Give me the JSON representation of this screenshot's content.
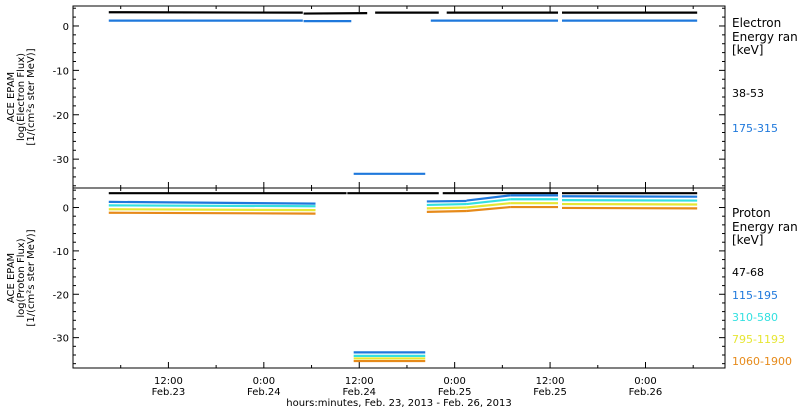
{
  "xlabel": "hours:minutes, Feb. 23, 2013 - Feb. 26, 2013",
  "xticks": [
    {
      "time": "12:00",
      "date": "Feb.23",
      "hour": 12
    },
    {
      "time": "0:00",
      "date": "Feb.24",
      "hour": 24
    },
    {
      "time": "12:00",
      "date": "Feb.24",
      "hour": 36
    },
    {
      "time": "0:00",
      "date": "Feb.25",
      "hour": 48
    },
    {
      "time": "12:00",
      "date": "Feb.25",
      "hour": 60
    },
    {
      "time": "0:00",
      "date": "Feb.26",
      "hour": 72
    }
  ],
  "chart_data": [
    {
      "type": "line",
      "ylabel_line1": "ACE EPAM",
      "ylabel_line2": "log(Electron Flux)",
      "ylabel_line3": "[1/(cm²s ster MeV)]",
      "yticks": [
        0,
        -10,
        -20,
        -30
      ],
      "ylim": [
        -36.5,
        4.5
      ],
      "legend_title_line1": "Electron",
      "legend_title_line2": "Energy ran",
      "legend_unit": "[keV]",
      "series": [
        {
          "name": "38-53",
          "color": "#000000",
          "segments": [
            {
              "x": [
                4.5,
                28.9
              ],
              "y": [
                3.1,
                3.0
              ]
            },
            {
              "x": [
                29.0,
                37.0
              ],
              "y": [
                2.8,
                2.9
              ]
            },
            {
              "x": [
                38.0,
                46.0
              ],
              "y": [
                3.0,
                3.0
              ]
            },
            {
              "x": [
                47.0,
                61.0
              ],
              "y": [
                3.0,
                3.0
              ]
            },
            {
              "x": [
                61.5,
                78.5
              ],
              "y": [
                3.0,
                3.0
              ]
            }
          ]
        },
        {
          "name": "175-315",
          "color": "#1e78dc",
          "segments": [
            {
              "x": [
                4.5,
                28.9
              ],
              "y": [
                1.2,
                1.2
              ]
            },
            {
              "x": [
                29.0,
                35.0
              ],
              "y": [
                1.1,
                1.1
              ]
            },
            {
              "x": [
                35.3,
                44.3
              ],
              "y": [
                -33.3,
                -33.3
              ]
            },
            {
              "x": [
                45.0,
                61.0
              ],
              "y": [
                1.2,
                1.2
              ]
            },
            {
              "x": [
                61.5,
                78.5
              ],
              "y": [
                1.2,
                1.2
              ]
            }
          ]
        }
      ]
    },
    {
      "type": "line",
      "ylabel_line1": "ACE EPAM",
      "ylabel_line2": "log(Proton Flux)",
      "ylabel_line3": "[1/(cm²s ster MeV)]",
      "yticks": [
        0,
        -10,
        -20,
        -30
      ],
      "ylim": [
        -37,
        4.5
      ],
      "legend_title_line1": "Proton",
      "legend_title_line2": "Energy ran",
      "legend_unit": "[keV]",
      "series": [
        {
          "name": "47-68",
          "color": "#000000",
          "segments": [
            {
              "x": [
                4.5,
                34.4
              ],
              "y": [
                3.3,
                3.3
              ]
            },
            {
              "x": [
                34.5,
                46.0
              ],
              "y": [
                3.3,
                3.3
              ]
            },
            {
              "x": [
                46.5,
                61.0
              ],
              "y": [
                3.3,
                3.3
              ]
            },
            {
              "x": [
                61.5,
                78.5
              ],
              "y": [
                3.3,
                3.3
              ]
            }
          ]
        },
        {
          "name": "115-195",
          "color": "#1e78dc",
          "segments": [
            {
              "x": [
                4.5,
                30.5
              ],
              "y": [
                1.3,
                0.9
              ]
            },
            {
              "x": [
                35.3,
                44.3
              ],
              "y": [
                -33.4,
                -33.4
              ]
            },
            {
              "x": [
                44.5,
                49.5
              ],
              "y": [
                1.4,
                1.5
              ]
            },
            {
              "x": [
                49.5,
                55.0
              ],
              "y": [
                1.6,
                2.8
              ]
            },
            {
              "x": [
                55.0,
                61.0
              ],
              "y": [
                2.8,
                2.8
              ]
            },
            {
              "x": [
                61.5,
                78.5
              ],
              "y": [
                2.6,
                2.5
              ]
            }
          ]
        },
        {
          "name": "310-580",
          "color": "#33e0e0",
          "segments": [
            {
              "x": [
                4.5,
                30.5
              ],
              "y": [
                0.5,
                0.3
              ]
            },
            {
              "x": [
                35.3,
                44.3
              ],
              "y": [
                -34.2,
                -34.2
              ]
            },
            {
              "x": [
                44.5,
                49.5
              ],
              "y": [
                0.6,
                0.8
              ]
            },
            {
              "x": [
                49.5,
                55.0
              ],
              "y": [
                0.8,
                1.9
              ]
            },
            {
              "x": [
                55.0,
                61.0
              ],
              "y": [
                1.9,
                1.9
              ]
            },
            {
              "x": [
                61.5,
                78.5
              ],
              "y": [
                1.7,
                1.6
              ]
            }
          ]
        },
        {
          "name": "795-1193",
          "color": "#e6e633",
          "segments": [
            {
              "x": [
                4.5,
                30.5
              ],
              "y": [
                -0.4,
                -0.6
              ]
            },
            {
              "x": [
                35.3,
                44.3
              ],
              "y": [
                -34.8,
                -34.8
              ]
            },
            {
              "x": [
                44.5,
                49.5
              ],
              "y": [
                -0.2,
                0.0
              ]
            },
            {
              "x": [
                49.5,
                55.0
              ],
              "y": [
                0.0,
                1.0
              ]
            },
            {
              "x": [
                55.0,
                61.0
              ],
              "y": [
                1.0,
                1.0
              ]
            },
            {
              "x": [
                61.5,
                78.5
              ],
              "y": [
                0.8,
                0.7
              ]
            }
          ]
        },
        {
          "name": "1060-1900",
          "color": "#e68a1a",
          "segments": [
            {
              "x": [
                4.5,
                30.5
              ],
              "y": [
                -1.2,
                -1.4
              ]
            },
            {
              "x": [
                35.3,
                44.3
              ],
              "y": [
                -35.4,
                -35.4
              ]
            },
            {
              "x": [
                44.5,
                49.5
              ],
              "y": [
                -1.0,
                -0.8
              ]
            },
            {
              "x": [
                49.5,
                55.0
              ],
              "y": [
                -0.8,
                0.1
              ]
            },
            {
              "x": [
                55.0,
                61.0
              ],
              "y": [
                0.1,
                0.1
              ]
            },
            {
              "x": [
                61.5,
                78.5
              ],
              "y": [
                -0.1,
                -0.2
              ]
            }
          ]
        }
      ]
    }
  ]
}
